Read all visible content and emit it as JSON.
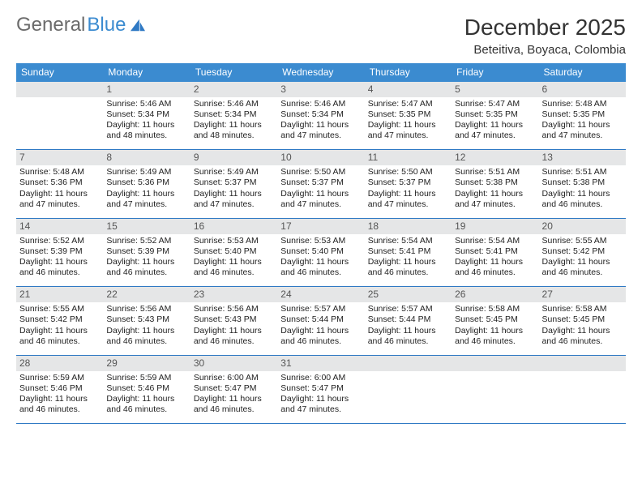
{
  "logo": {
    "part1": "General",
    "part2": "Blue"
  },
  "title": "December 2025",
  "subtitle": "Beteitiva, Boyaca, Colombia",
  "colors": {
    "header_blue": "#3b8bd0",
    "accent_blue": "#2f79c4",
    "daynum_bg": "#e5e6e7",
    "text": "#222222",
    "background": "#ffffff"
  },
  "weekdays": [
    "Sunday",
    "Monday",
    "Tuesday",
    "Wednesday",
    "Thursday",
    "Friday",
    "Saturday"
  ],
  "weeks": [
    [
      null,
      {
        "n": "1",
        "sr": "Sunrise: 5:46 AM",
        "ss": "Sunset: 5:34 PM",
        "d1": "Daylight: 11 hours",
        "d2": "and 48 minutes."
      },
      {
        "n": "2",
        "sr": "Sunrise: 5:46 AM",
        "ss": "Sunset: 5:34 PM",
        "d1": "Daylight: 11 hours",
        "d2": "and 48 minutes."
      },
      {
        "n": "3",
        "sr": "Sunrise: 5:46 AM",
        "ss": "Sunset: 5:34 PM",
        "d1": "Daylight: 11 hours",
        "d2": "and 47 minutes."
      },
      {
        "n": "4",
        "sr": "Sunrise: 5:47 AM",
        "ss": "Sunset: 5:35 PM",
        "d1": "Daylight: 11 hours",
        "d2": "and 47 minutes."
      },
      {
        "n": "5",
        "sr": "Sunrise: 5:47 AM",
        "ss": "Sunset: 5:35 PM",
        "d1": "Daylight: 11 hours",
        "d2": "and 47 minutes."
      },
      {
        "n": "6",
        "sr": "Sunrise: 5:48 AM",
        "ss": "Sunset: 5:35 PM",
        "d1": "Daylight: 11 hours",
        "d2": "and 47 minutes."
      }
    ],
    [
      {
        "n": "7",
        "sr": "Sunrise: 5:48 AM",
        "ss": "Sunset: 5:36 PM",
        "d1": "Daylight: 11 hours",
        "d2": "and 47 minutes."
      },
      {
        "n": "8",
        "sr": "Sunrise: 5:49 AM",
        "ss": "Sunset: 5:36 PM",
        "d1": "Daylight: 11 hours",
        "d2": "and 47 minutes."
      },
      {
        "n": "9",
        "sr": "Sunrise: 5:49 AM",
        "ss": "Sunset: 5:37 PM",
        "d1": "Daylight: 11 hours",
        "d2": "and 47 minutes."
      },
      {
        "n": "10",
        "sr": "Sunrise: 5:50 AM",
        "ss": "Sunset: 5:37 PM",
        "d1": "Daylight: 11 hours",
        "d2": "and 47 minutes."
      },
      {
        "n": "11",
        "sr": "Sunrise: 5:50 AM",
        "ss": "Sunset: 5:37 PM",
        "d1": "Daylight: 11 hours",
        "d2": "and 47 minutes."
      },
      {
        "n": "12",
        "sr": "Sunrise: 5:51 AM",
        "ss": "Sunset: 5:38 PM",
        "d1": "Daylight: 11 hours",
        "d2": "and 47 minutes."
      },
      {
        "n": "13",
        "sr": "Sunrise: 5:51 AM",
        "ss": "Sunset: 5:38 PM",
        "d1": "Daylight: 11 hours",
        "d2": "and 46 minutes."
      }
    ],
    [
      {
        "n": "14",
        "sr": "Sunrise: 5:52 AM",
        "ss": "Sunset: 5:39 PM",
        "d1": "Daylight: 11 hours",
        "d2": "and 46 minutes."
      },
      {
        "n": "15",
        "sr": "Sunrise: 5:52 AM",
        "ss": "Sunset: 5:39 PM",
        "d1": "Daylight: 11 hours",
        "d2": "and 46 minutes."
      },
      {
        "n": "16",
        "sr": "Sunrise: 5:53 AM",
        "ss": "Sunset: 5:40 PM",
        "d1": "Daylight: 11 hours",
        "d2": "and 46 minutes."
      },
      {
        "n": "17",
        "sr": "Sunrise: 5:53 AM",
        "ss": "Sunset: 5:40 PM",
        "d1": "Daylight: 11 hours",
        "d2": "and 46 minutes."
      },
      {
        "n": "18",
        "sr": "Sunrise: 5:54 AM",
        "ss": "Sunset: 5:41 PM",
        "d1": "Daylight: 11 hours",
        "d2": "and 46 minutes."
      },
      {
        "n": "19",
        "sr": "Sunrise: 5:54 AM",
        "ss": "Sunset: 5:41 PM",
        "d1": "Daylight: 11 hours",
        "d2": "and 46 minutes."
      },
      {
        "n": "20",
        "sr": "Sunrise: 5:55 AM",
        "ss": "Sunset: 5:42 PM",
        "d1": "Daylight: 11 hours",
        "d2": "and 46 minutes."
      }
    ],
    [
      {
        "n": "21",
        "sr": "Sunrise: 5:55 AM",
        "ss": "Sunset: 5:42 PM",
        "d1": "Daylight: 11 hours",
        "d2": "and 46 minutes."
      },
      {
        "n": "22",
        "sr": "Sunrise: 5:56 AM",
        "ss": "Sunset: 5:43 PM",
        "d1": "Daylight: 11 hours",
        "d2": "and 46 minutes."
      },
      {
        "n": "23",
        "sr": "Sunrise: 5:56 AM",
        "ss": "Sunset: 5:43 PM",
        "d1": "Daylight: 11 hours",
        "d2": "and 46 minutes."
      },
      {
        "n": "24",
        "sr": "Sunrise: 5:57 AM",
        "ss": "Sunset: 5:44 PM",
        "d1": "Daylight: 11 hours",
        "d2": "and 46 minutes."
      },
      {
        "n": "25",
        "sr": "Sunrise: 5:57 AM",
        "ss": "Sunset: 5:44 PM",
        "d1": "Daylight: 11 hours",
        "d2": "and 46 minutes."
      },
      {
        "n": "26",
        "sr": "Sunrise: 5:58 AM",
        "ss": "Sunset: 5:45 PM",
        "d1": "Daylight: 11 hours",
        "d2": "and 46 minutes."
      },
      {
        "n": "27",
        "sr": "Sunrise: 5:58 AM",
        "ss": "Sunset: 5:45 PM",
        "d1": "Daylight: 11 hours",
        "d2": "and 46 minutes."
      }
    ],
    [
      {
        "n": "28",
        "sr": "Sunrise: 5:59 AM",
        "ss": "Sunset: 5:46 PM",
        "d1": "Daylight: 11 hours",
        "d2": "and 46 minutes."
      },
      {
        "n": "29",
        "sr": "Sunrise: 5:59 AM",
        "ss": "Sunset: 5:46 PM",
        "d1": "Daylight: 11 hours",
        "d2": "and 46 minutes."
      },
      {
        "n": "30",
        "sr": "Sunrise: 6:00 AM",
        "ss": "Sunset: 5:47 PM",
        "d1": "Daylight: 11 hours",
        "d2": "and 46 minutes."
      },
      {
        "n": "31",
        "sr": "Sunrise: 6:00 AM",
        "ss": "Sunset: 5:47 PM",
        "d1": "Daylight: 11 hours",
        "d2": "and 47 minutes."
      },
      null,
      null,
      null
    ]
  ]
}
